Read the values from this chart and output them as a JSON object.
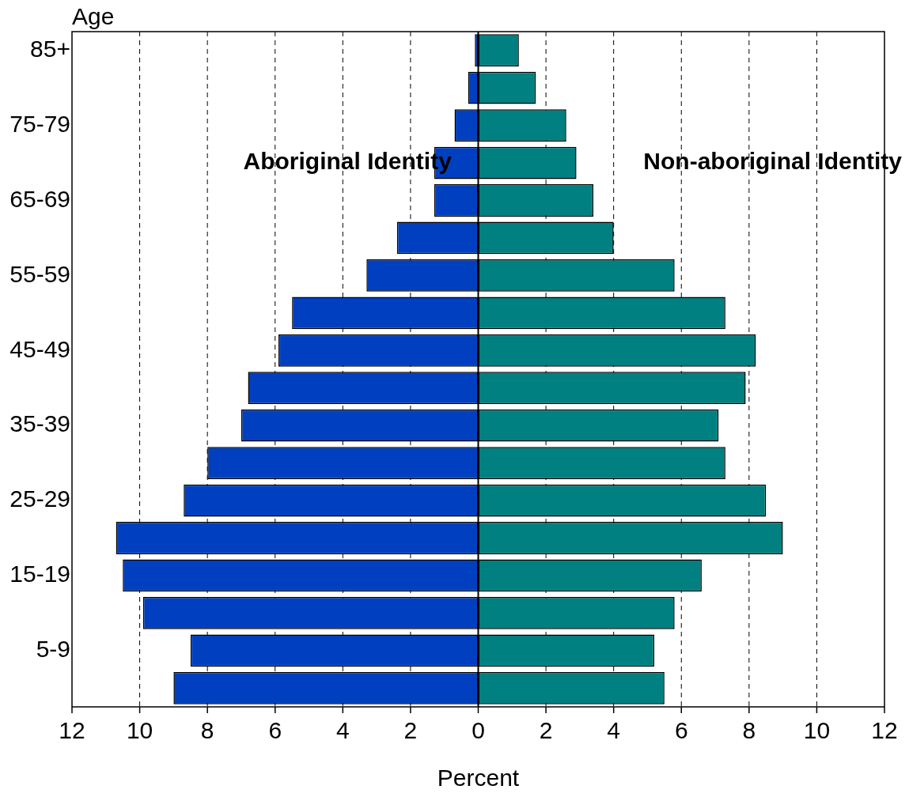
{
  "chart_data": {
    "type": "bar",
    "orientation": "horizontal",
    "stacked": true,
    "xlabel": "Percent",
    "ylabel": "Age",
    "categories": [
      "85+",
      null,
      "75-79",
      null,
      "65-69",
      null,
      "55-59",
      null,
      "45-49",
      null,
      "35-39",
      null,
      "25-29",
      null,
      "15-19",
      null,
      "5-9",
      null
    ],
    "series": [
      {
        "name": "Aboriginal Identity",
        "color": "#0040c0",
        "values": [
          -0.1,
          -0.3,
          -0.7,
          -1.3,
          -1.3,
          -2.4,
          -3.3,
          -5.5,
          -5.9,
          -6.8,
          -7.0,
          -8.0,
          -8.7,
          -10.7,
          -10.5,
          -9.9,
          -8.5,
          -9.0
        ]
      },
      {
        "name": "Non-aboriginal Identity",
        "color": "#008080",
        "values": [
          1.2,
          1.7,
          2.6,
          2.9,
          3.4,
          4.0,
          5.8,
          7.3,
          8.2,
          7.9,
          7.1,
          7.3,
          8.5,
          9.0,
          6.6,
          5.8,
          5.2,
          5.5
        ]
      }
    ],
    "xlim": [
      -12,
      12
    ],
    "xticks": [
      {
        "value": -12,
        "label": "12"
      },
      {
        "value": -10,
        "label": "10"
      },
      {
        "value": -8,
        "label": "8"
      },
      {
        "value": -6,
        "label": "6"
      },
      {
        "value": -4,
        "label": "4"
      },
      {
        "value": -2,
        "label": "2"
      },
      0,
      2,
      4,
      6,
      8,
      10,
      12
    ],
    "grid": "x",
    "legend": false
  }
}
